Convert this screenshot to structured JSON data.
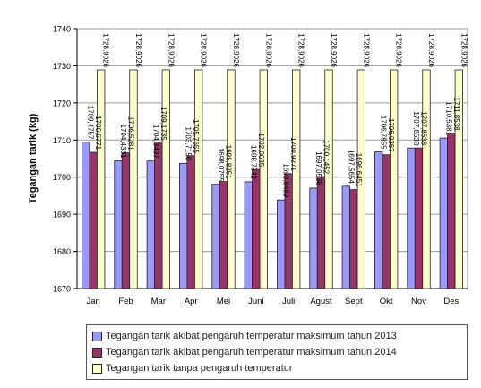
{
  "chart_data": {
    "type": "bar",
    "title": "",
    "xlabel": "",
    "ylabel": "Tegangan tarik (kg)",
    "ylim": [
      1670,
      1740
    ],
    "yticks": [
      1670,
      1680,
      1690,
      1700,
      1710,
      1720,
      1730,
      1740
    ],
    "grid": true,
    "legend_position": "bottom",
    "categories": [
      "Jan",
      "Feb",
      "Mar",
      "Apr",
      "Mei",
      "Juni",
      "Juli",
      "Agust",
      "Sept",
      "Okt",
      "Nov",
      "Des"
    ],
    "series": [
      {
        "name": "Tegangan tarik akibat pengaruh temperatur maksimum tahun 2013",
        "color": "#9999ff",
        "values": [
          1709.4757,
          1704.4381,
          1704.3497,
          1703.7156,
          1698.0755,
          1698.7542,
          1693.8489,
          1697.0536,
          1697.5654,
          1706.7855,
          1707.8538,
          1710.5381
        ],
        "labels": [
          "1709,4757",
          "1704,4381",
          "1704,3497",
          "1703,7156",
          "1698,0755",
          "1698,7542",
          "1693,8489",
          "1697,0536",
          "1697,5654",
          "1706,7855",
          "1707,8538",
          "1710,5381"
        ]
      },
      {
        "name": "Tegangan tarik akibat pengaruh temperatur maksimum tahun 2014",
        "color": "#993366",
        "values": [
          1706.6771,
          1706.5281,
          1709.1735,
          1705.7655,
          1698.8251,
          1702.0635,
          1700.9271,
          1700.1452,
          1696.6451,
          1706.0367,
          1707.8538,
          1711.8538
        ],
        "labels": [
          "1706,6771",
          "1706,5281",
          "1709,1735",
          "1705,7655",
          "1698,8251",
          "1702,0635",
          "1700,9271",
          "1700,1452",
          "1696,6451",
          "1706,0367",
          "1707,8538",
          "1711,8538"
        ]
      },
      {
        "name": "Tegangan tarik tanpa pengaruh temperatur",
        "color": "#ffffcc",
        "values": [
          1728.9026,
          1728.9026,
          1728.9026,
          1728.9026,
          1728.9026,
          1728.9026,
          1728.9026,
          1728.9026,
          1728.9026,
          1728.9026,
          1728.9026,
          1728.9026
        ],
        "labels": [
          "1728,9026",
          "1728,9026",
          "1728,9026",
          "1728,9026",
          "1728,9026",
          "1728,9026",
          "1728,9026",
          "1728,9026",
          "1728,9026",
          "1728,9026",
          "1728,9026",
          "1728,9026"
        ]
      }
    ]
  }
}
